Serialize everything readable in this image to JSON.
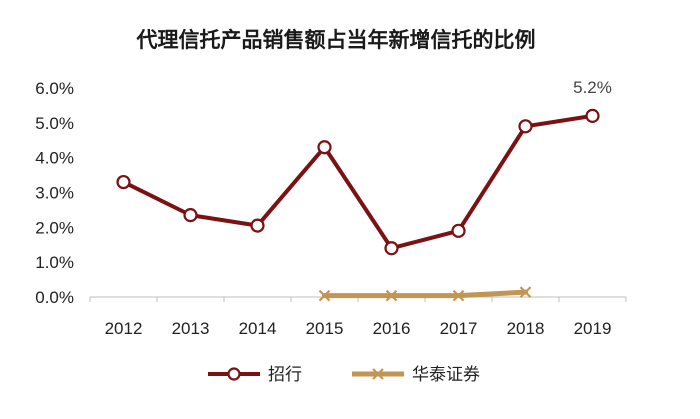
{
  "chart_data": {
    "type": "line",
    "title": "代理信托产品销售额占当年新增信托的比例",
    "categories": [
      "2012",
      "2013",
      "2014",
      "2015",
      "2016",
      "2017",
      "2018",
      "2019"
    ],
    "y_ticks": [
      "0.0%",
      "1.0%",
      "2.0%",
      "3.0%",
      "4.0%",
      "5.0%",
      "6.0%"
    ],
    "ylim": [
      0,
      6
    ],
    "grid": false,
    "legend_position": "bottom",
    "series": [
      {
        "name": "招行",
        "values": [
          3.3,
          2.35,
          2.05,
          4.3,
          1.4,
          1.9,
          4.9,
          5.2
        ],
        "color": "#7b1113",
        "marker": "circle"
      },
      {
        "name": "华泰证券",
        "values": [
          null,
          null,
          null,
          0.04,
          0.04,
          0.04,
          0.14,
          null
        ],
        "color": "#c29553",
        "marker": "x"
      }
    ],
    "data_labels": [
      {
        "series": 0,
        "index": 7,
        "text": "5.2%"
      }
    ]
  }
}
